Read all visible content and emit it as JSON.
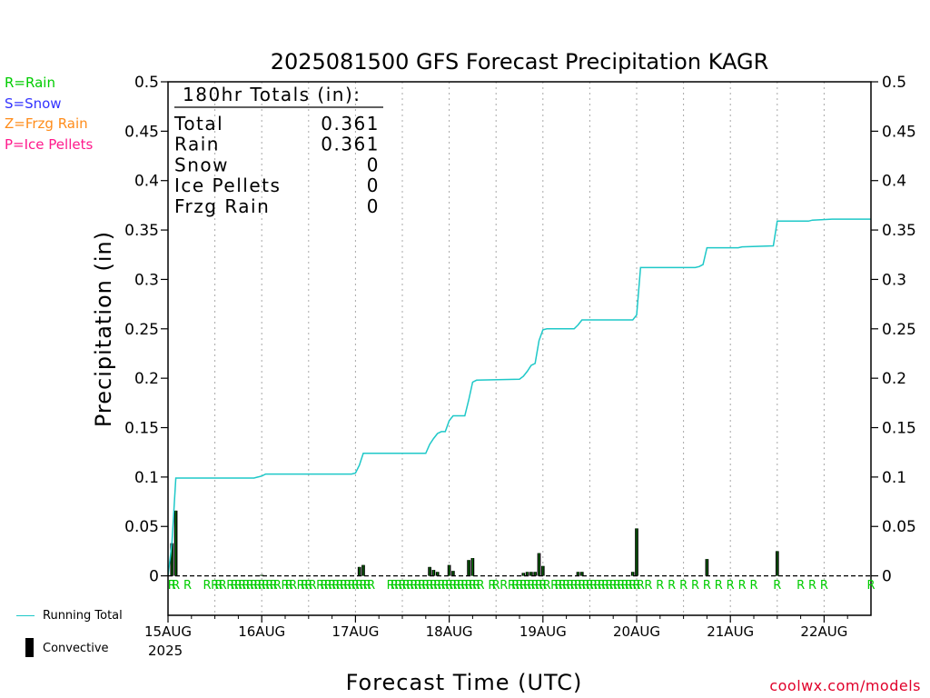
{
  "legend_types": [
    {
      "label": "R=Rain",
      "color": "#00cc00"
    },
    {
      "label": "S=Snow",
      "color": "#3333ff"
    },
    {
      "label": "Z=Frzg Rain",
      "color": "#ff8c1a"
    },
    {
      "label": "P=Ice Pellets",
      "color": "#ff1a8c"
    }
  ],
  "totals": {
    "header": "180hr Totals (in):",
    "rows": [
      {
        "label": "Total",
        "value": "0.361"
      },
      {
        "label": "Rain",
        "value": "0.361"
      },
      {
        "label": "Snow",
        "value": "0"
      },
      {
        "label": "Ice Pellets",
        "value": "0"
      },
      {
        "label": "Frzg Rain",
        "value": "0"
      }
    ]
  },
  "bottom_legend": {
    "running_total_label": "Running Total",
    "convective_label": "Convective",
    "running_total_color": "#1ec8c8"
  },
  "credit": "coolwx.com/models",
  "chart_data": {
    "type": "bar",
    "title": "2025081500 GFS Forecast Precipitation KAGR",
    "xlabel": "Forecast Time (UTC)",
    "ylabel": "Precipitation (in)",
    "ylim": [
      0,
      0.5
    ],
    "xlim_hours": [
      0,
      180
    ],
    "yticks": [
      "0",
      "0.05",
      "0.1",
      "0.15",
      "0.2",
      "0.25",
      "0.3",
      "0.35",
      "0.4",
      "0.45",
      "0.5"
    ],
    "x_tick_hours": [
      0,
      24,
      48,
      72,
      96,
      120,
      144,
      168
    ],
    "x_tick_labels": [
      "15AUG",
      "16AUG",
      "17AUG",
      "18AUG",
      "19AUG",
      "20AUG",
      "21AUG",
      "22AUG"
    ],
    "x_year_label": "2025",
    "grid": "vertical dotted at day boundaries",
    "convective_bars": [
      {
        "hour": 1,
        "value": 0.033
      },
      {
        "hour": 2,
        "value": 0.066
      },
      {
        "hour": 24,
        "value": 0.001
      },
      {
        "hour": 49,
        "value": 0.009
      },
      {
        "hour": 50,
        "value": 0.011
      },
      {
        "hour": 67,
        "value": 0.009
      },
      {
        "hour": 68,
        "value": 0.006
      },
      {
        "hour": 69,
        "value": 0.004
      },
      {
        "hour": 72,
        "value": 0.011
      },
      {
        "hour": 73,
        "value": 0.005
      },
      {
        "hour": 77,
        "value": 0.016
      },
      {
        "hour": 78,
        "value": 0.018
      },
      {
        "hour": 91,
        "value": 0.003
      },
      {
        "hour": 92,
        "value": 0.004
      },
      {
        "hour": 93,
        "value": 0.004
      },
      {
        "hour": 94,
        "value": 0.004
      },
      {
        "hour": 95,
        "value": 0.023
      },
      {
        "hour": 96,
        "value": 0.01
      },
      {
        "hour": 105,
        "value": 0.004
      },
      {
        "hour": 106,
        "value": 0.004
      },
      {
        "hour": 119,
        "value": 0.004
      },
      {
        "hour": 120,
        "value": 0.048
      },
      {
        "hour": 138,
        "value": 0.017
      },
      {
        "hour": 156,
        "value": 0.025
      }
    ],
    "running_total": [
      [
        0,
        0
      ],
      [
        1,
        0.033
      ],
      [
        2,
        0.099
      ],
      [
        3,
        0.099
      ],
      [
        22,
        0.099
      ],
      [
        23,
        0.1
      ],
      [
        24,
        0.101
      ],
      [
        25,
        0.103
      ],
      [
        47,
        0.103
      ],
      [
        48,
        0.104
      ],
      [
        49,
        0.112
      ],
      [
        50,
        0.124
      ],
      [
        66,
        0.124
      ],
      [
        67,
        0.133
      ],
      [
        68,
        0.139
      ],
      [
        69,
        0.144
      ],
      [
        70,
        0.146
      ],
      [
        71,
        0.146
      ],
      [
        72,
        0.157
      ],
      [
        73,
        0.162
      ],
      [
        76,
        0.162
      ],
      [
        77,
        0.178
      ],
      [
        78,
        0.196
      ],
      [
        79,
        0.198
      ],
      [
        90,
        0.199
      ],
      [
        91,
        0.202
      ],
      [
        92,
        0.207
      ],
      [
        93,
        0.213
      ],
      [
        94,
        0.215
      ],
      [
        95,
        0.238
      ],
      [
        96,
        0.249
      ],
      [
        97,
        0.25
      ],
      [
        104,
        0.25
      ],
      [
        105,
        0.254
      ],
      [
        106,
        0.259
      ],
      [
        119,
        0.259
      ],
      [
        120,
        0.264
      ],
      [
        121,
        0.312
      ],
      [
        135,
        0.312
      ],
      [
        136,
        0.313
      ],
      [
        137,
        0.315
      ],
      [
        138,
        0.332
      ],
      [
        146,
        0.332
      ],
      [
        147,
        0.333
      ],
      [
        155,
        0.334
      ],
      [
        156,
        0.359
      ],
      [
        164,
        0.359
      ],
      [
        165,
        0.36
      ],
      [
        170,
        0.361
      ],
      [
        180,
        0.361
      ]
    ],
    "precip_type_hours": [
      1,
      2,
      5,
      10,
      12,
      13,
      14,
      16,
      17,
      18,
      19,
      20,
      21,
      22,
      23,
      24,
      25,
      26,
      27,
      28,
      30,
      31,
      32,
      34,
      35,
      36,
      37,
      39,
      40,
      41,
      42,
      43,
      44,
      45,
      46,
      47,
      48,
      49,
      50,
      51,
      52,
      57,
      58,
      59,
      60,
      61,
      62,
      63,
      64,
      65,
      66,
      67,
      68,
      69,
      70,
      71,
      72,
      73,
      74,
      75,
      76,
      77,
      78,
      79,
      80,
      83,
      84,
      86,
      88,
      89,
      90,
      91,
      92,
      93,
      94,
      95,
      96,
      97,
      99,
      100,
      101,
      102,
      103,
      104,
      105,
      106,
      107,
      108,
      109,
      110,
      111,
      112,
      113,
      114,
      115,
      116,
      117,
      118,
      119,
      120,
      121,
      123,
      126,
      129,
      132,
      135,
      138,
      141,
      144,
      147,
      150,
      156,
      162,
      165,
      168,
      180
    ],
    "precip_type_letter": "R"
  }
}
